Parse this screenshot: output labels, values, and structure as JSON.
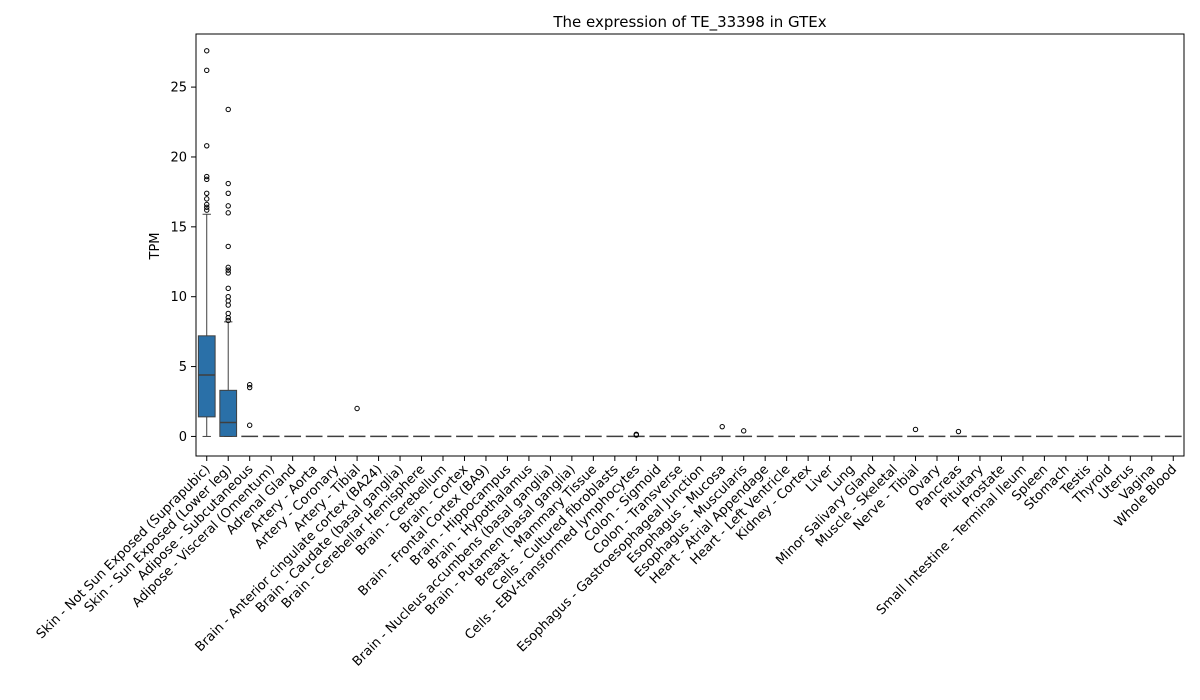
{
  "chart_data": {
    "type": "box",
    "title": "The expression of TE_33398 in GTEx",
    "xlabel": "",
    "ylabel": "TPM",
    "ylim": [
      -1.4,
      28.8
    ],
    "yticks": [
      0,
      5,
      10,
      15,
      20,
      25
    ],
    "box_color": "#2a70a8",
    "categories": [
      "Skin - Not Sun Exposed (Suprapubic)",
      "Skin - Sun Exposed (Lower leg)",
      "Adipose - Subcutaneous",
      "Adipose - Visceral (Omentum)",
      "Adrenal Gland",
      "Artery - Aorta",
      "Artery - Coronary",
      "Artery - Tibial",
      "Brain - Anterior cingulate cortex (BA24)",
      "Brain - Caudate (basal ganglia)",
      "Brain - Cerebellar Hemisphere",
      "Brain - Cerebellum",
      "Brain - Cortex",
      "Brain - Frontal Cortex (BA9)",
      "Brain - Hippocampus",
      "Brain - Hypothalamus",
      "Brain - Nucleus accumbens (basal ganglia)",
      "Brain - Putamen (basal ganglia)",
      "Breast - Mammary Tissue",
      "Cells - Cultured fibroblasts",
      "Cells - EBV-transformed lymphocytes",
      "Colon - Sigmoid",
      "Colon - Transverse",
      "Esophagus - Gastroesophageal Junction",
      "Esophagus - Mucosa",
      "Esophagus - Muscularis",
      "Heart - Atrial Appendage",
      "Heart - Left Ventricle",
      "Kidney - Cortex",
      "Liver",
      "Lung",
      "Minor Salivary Gland",
      "Muscle - Skeletal",
      "Nerve - Tibial",
      "Ovary",
      "Pancreas",
      "Pituitary",
      "Prostate",
      "Small Intestine - Terminal Ileum",
      "Spleen",
      "Stomach",
      "Testis",
      "Thyroid",
      "Uterus",
      "Vagina",
      "Whole Blood"
    ],
    "boxes": [
      {
        "q1": 1.4,
        "median": 4.4,
        "q3": 7.2,
        "whisker_low": 0.0,
        "whisker_high": 15.9,
        "outliers": [
          16.2,
          16.4,
          16.6,
          17.0,
          17.4,
          18.4,
          18.6,
          20.8,
          26.2,
          27.6
        ]
      },
      {
        "q1": 0.0,
        "median": 1.0,
        "q3": 3.3,
        "whisker_low": 0.0,
        "whisker_high": 8.2,
        "outliers": [
          8.3,
          8.5,
          8.8,
          9.4,
          9.7,
          10.0,
          10.6,
          11.7,
          11.9,
          12.1,
          13.6,
          16.0,
          16.5,
          17.4,
          18.1,
          23.4
        ]
      },
      {
        "q1": 0,
        "median": 0,
        "q3": 0,
        "whisker_low": 0,
        "whisker_high": 0,
        "outliers": [
          0.8,
          3.5,
          3.7
        ]
      },
      {
        "q1": 0,
        "median": 0,
        "q3": 0,
        "whisker_low": 0,
        "whisker_high": 0,
        "outliers": []
      },
      {
        "q1": 0,
        "median": 0,
        "q3": 0,
        "whisker_low": 0,
        "whisker_high": 0,
        "outliers": []
      },
      {
        "q1": 0,
        "median": 0,
        "q3": 0,
        "whisker_low": 0,
        "whisker_high": 0,
        "outliers": []
      },
      {
        "q1": 0,
        "median": 0,
        "q3": 0,
        "whisker_low": 0,
        "whisker_high": 0,
        "outliers": []
      },
      {
        "q1": 0,
        "median": 0,
        "q3": 0,
        "whisker_low": 0,
        "whisker_high": 0,
        "outliers": [
          2.0
        ]
      },
      {
        "q1": 0,
        "median": 0,
        "q3": 0,
        "whisker_low": 0,
        "whisker_high": 0,
        "outliers": []
      },
      {
        "q1": 0,
        "median": 0,
        "q3": 0,
        "whisker_low": 0,
        "whisker_high": 0,
        "outliers": []
      },
      {
        "q1": 0,
        "median": 0,
        "q3": 0,
        "whisker_low": 0,
        "whisker_high": 0,
        "outliers": []
      },
      {
        "q1": 0,
        "median": 0,
        "q3": 0,
        "whisker_low": 0,
        "whisker_high": 0,
        "outliers": []
      },
      {
        "q1": 0,
        "median": 0,
        "q3": 0,
        "whisker_low": 0,
        "whisker_high": 0,
        "outliers": []
      },
      {
        "q1": 0,
        "median": 0,
        "q3": 0,
        "whisker_low": 0,
        "whisker_high": 0,
        "outliers": []
      },
      {
        "q1": 0,
        "median": 0,
        "q3": 0,
        "whisker_low": 0,
        "whisker_high": 0,
        "outliers": []
      },
      {
        "q1": 0,
        "median": 0,
        "q3": 0,
        "whisker_low": 0,
        "whisker_high": 0,
        "outliers": []
      },
      {
        "q1": 0,
        "median": 0,
        "q3": 0,
        "whisker_low": 0,
        "whisker_high": 0,
        "outliers": []
      },
      {
        "q1": 0,
        "median": 0,
        "q3": 0,
        "whisker_low": 0,
        "whisker_high": 0,
        "outliers": []
      },
      {
        "q1": 0,
        "median": 0,
        "q3": 0,
        "whisker_low": 0,
        "whisker_high": 0,
        "outliers": []
      },
      {
        "q1": 0,
        "median": 0,
        "q3": 0,
        "whisker_low": 0,
        "whisker_high": 0,
        "outliers": []
      },
      {
        "q1": 0,
        "median": 0,
        "q3": 0,
        "whisker_low": 0,
        "whisker_high": 0,
        "outliers": [
          0.1,
          0.15
        ]
      },
      {
        "q1": 0,
        "median": 0,
        "q3": 0,
        "whisker_low": 0,
        "whisker_high": 0,
        "outliers": []
      },
      {
        "q1": 0,
        "median": 0,
        "q3": 0,
        "whisker_low": 0,
        "whisker_high": 0,
        "outliers": []
      },
      {
        "q1": 0,
        "median": 0,
        "q3": 0,
        "whisker_low": 0,
        "whisker_high": 0,
        "outliers": []
      },
      {
        "q1": 0,
        "median": 0,
        "q3": 0,
        "whisker_low": 0,
        "whisker_high": 0,
        "outliers": [
          0.7
        ]
      },
      {
        "q1": 0,
        "median": 0,
        "q3": 0,
        "whisker_low": 0,
        "whisker_high": 0,
        "outliers": [
          0.4
        ]
      },
      {
        "q1": 0,
        "median": 0,
        "q3": 0,
        "whisker_low": 0,
        "whisker_high": 0,
        "outliers": []
      },
      {
        "q1": 0,
        "median": 0,
        "q3": 0,
        "whisker_low": 0,
        "whisker_high": 0,
        "outliers": []
      },
      {
        "q1": 0,
        "median": 0,
        "q3": 0,
        "whisker_low": 0,
        "whisker_high": 0,
        "outliers": []
      },
      {
        "q1": 0,
        "median": 0,
        "q3": 0,
        "whisker_low": 0,
        "whisker_high": 0,
        "outliers": []
      },
      {
        "q1": 0,
        "median": 0,
        "q3": 0,
        "whisker_low": 0,
        "whisker_high": 0,
        "outliers": []
      },
      {
        "q1": 0,
        "median": 0,
        "q3": 0,
        "whisker_low": 0,
        "whisker_high": 0,
        "outliers": []
      },
      {
        "q1": 0,
        "median": 0,
        "q3": 0,
        "whisker_low": 0,
        "whisker_high": 0,
        "outliers": []
      },
      {
        "q1": 0,
        "median": 0,
        "q3": 0,
        "whisker_low": 0,
        "whisker_high": 0,
        "outliers": [
          0.5
        ]
      },
      {
        "q1": 0,
        "median": 0,
        "q3": 0,
        "whisker_low": 0,
        "whisker_high": 0,
        "outliers": []
      },
      {
        "q1": 0,
        "median": 0,
        "q3": 0,
        "whisker_low": 0,
        "whisker_high": 0,
        "outliers": [
          0.35
        ]
      },
      {
        "q1": 0,
        "median": 0,
        "q3": 0,
        "whisker_low": 0,
        "whisker_high": 0,
        "outliers": []
      },
      {
        "q1": 0,
        "median": 0,
        "q3": 0,
        "whisker_low": 0,
        "whisker_high": 0,
        "outliers": []
      },
      {
        "q1": 0,
        "median": 0,
        "q3": 0,
        "whisker_low": 0,
        "whisker_high": 0,
        "outliers": []
      },
      {
        "q1": 0,
        "median": 0,
        "q3": 0,
        "whisker_low": 0,
        "whisker_high": 0,
        "outliers": []
      },
      {
        "q1": 0,
        "median": 0,
        "q3": 0,
        "whisker_low": 0,
        "whisker_high": 0,
        "outliers": []
      },
      {
        "q1": 0,
        "median": 0,
        "q3": 0,
        "whisker_low": 0,
        "whisker_high": 0,
        "outliers": []
      },
      {
        "q1": 0,
        "median": 0,
        "q3": 0,
        "whisker_low": 0,
        "whisker_high": 0,
        "outliers": []
      },
      {
        "q1": 0,
        "median": 0,
        "q3": 0,
        "whisker_low": 0,
        "whisker_high": 0,
        "outliers": []
      },
      {
        "q1": 0,
        "median": 0,
        "q3": 0,
        "whisker_low": 0,
        "whisker_high": 0,
        "outliers": []
      },
      {
        "q1": 0,
        "median": 0,
        "q3": 0,
        "whisker_low": 0,
        "whisker_high": 0,
        "outliers": []
      }
    ]
  }
}
